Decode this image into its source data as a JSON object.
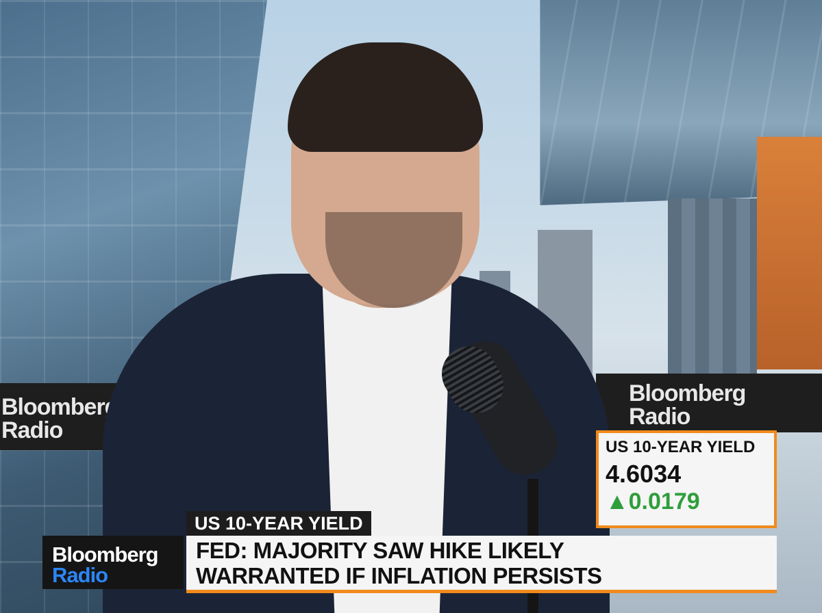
{
  "banners": {
    "left_line1": "Bloomberg",
    "left_line2": "Radio",
    "right_line1": "Bloomberg",
    "right_line2": "Radio"
  },
  "logo": {
    "line1": "Bloomberg",
    "line2": "Radio"
  },
  "lower_third": {
    "tag": "US 10-YEAR YIELD",
    "headline_line1": "FED: MAJORITY SAW HIKE LIKELY",
    "headline_line2": "WARRANTED IF INFLATION PERSISTS"
  },
  "quote": {
    "label": "US 10-YEAR YIELD",
    "value": "4.6034",
    "change": "▲0.0179",
    "change_color": "#2f9e3b",
    "accent_color": "#f08a1c"
  }
}
